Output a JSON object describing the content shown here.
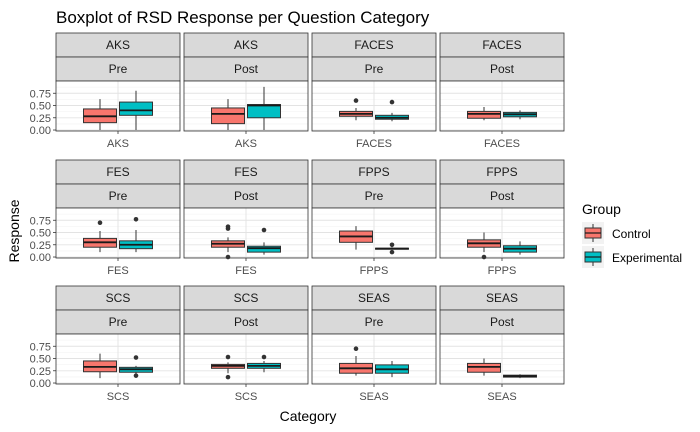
{
  "chart_data": {
    "type": "boxplot",
    "title": "Boxplot of RSD Response per Question Category",
    "xlabel": "Category",
    "ylabel": "Response",
    "ylim": [
      -0.02,
      1.0
    ],
    "yticks": [
      "0.00",
      "0.25",
      "0.50",
      "0.75"
    ],
    "grid": true,
    "facet_layout": "3 rows x 4 columns, faceted by category and time",
    "legend": {
      "title": "Group",
      "position": "right",
      "entries": [
        {
          "name": "Control",
          "color": "#F8766D"
        },
        {
          "name": "Experimental",
          "color": "#00BFC4"
        }
      ]
    },
    "panels": [
      {
        "category": "AKS",
        "time": "Pre",
        "x_label": "AKS",
        "boxes": [
          {
            "group": "Control",
            "whisker_low": 0.0,
            "q1": 0.15,
            "median": 0.28,
            "q3": 0.43,
            "whisker_high": 0.63,
            "outliers": []
          },
          {
            "group": "Experimental",
            "whisker_low": 0.0,
            "q1": 0.3,
            "median": 0.4,
            "q3": 0.57,
            "whisker_high": 0.8,
            "outliers": []
          }
        ]
      },
      {
        "category": "AKS",
        "time": "Post",
        "x_label": "AKS",
        "boxes": [
          {
            "group": "Control",
            "whisker_low": 0.0,
            "q1": 0.13,
            "median": 0.33,
            "q3": 0.45,
            "whisker_high": 0.63,
            "outliers": []
          },
          {
            "group": "Experimental",
            "whisker_low": 0.0,
            "q1": 0.25,
            "median": 0.5,
            "q3": 0.52,
            "whisker_high": 0.88,
            "outliers": []
          }
        ]
      },
      {
        "category": "FACES",
        "time": "Pre",
        "x_label": "FACES",
        "boxes": [
          {
            "group": "Control",
            "whisker_low": 0.2,
            "q1": 0.28,
            "median": 0.33,
            "q3": 0.38,
            "whisker_high": 0.45,
            "outliers": [
              0.6
            ]
          },
          {
            "group": "Experimental",
            "whisker_low": 0.18,
            "q1": 0.22,
            "median": 0.25,
            "q3": 0.3,
            "whisker_high": 0.35,
            "outliers": [
              0.57
            ]
          }
        ]
      },
      {
        "category": "FACES",
        "time": "Post",
        "x_label": "FACES",
        "boxes": [
          {
            "group": "Control",
            "whisker_low": 0.2,
            "q1": 0.24,
            "median": 0.33,
            "q3": 0.38,
            "whisker_high": 0.47,
            "outliers": []
          },
          {
            "group": "Experimental",
            "whisker_low": 0.22,
            "q1": 0.27,
            "median": 0.32,
            "q3": 0.36,
            "whisker_high": 0.4,
            "outliers": []
          }
        ]
      },
      {
        "category": "FES",
        "time": "Pre",
        "x_label": "FES",
        "boxes": [
          {
            "group": "Control",
            "whisker_low": 0.1,
            "q1": 0.2,
            "median": 0.3,
            "q3": 0.38,
            "whisker_high": 0.53,
            "outliers": [
              0.7
            ]
          },
          {
            "group": "Experimental",
            "whisker_low": 0.1,
            "q1": 0.17,
            "median": 0.25,
            "q3": 0.33,
            "whisker_high": 0.55,
            "outliers": [
              0.77
            ]
          }
        ]
      },
      {
        "category": "FES",
        "time": "Post",
        "x_label": "FES",
        "boxes": [
          {
            "group": "Control",
            "whisker_low": 0.1,
            "q1": 0.2,
            "median": 0.27,
            "q3": 0.33,
            "whisker_high": 0.4,
            "outliers": [
              0.62,
              0.58,
              0.0
            ]
          },
          {
            "group": "Experimental",
            "whisker_low": 0.05,
            "q1": 0.1,
            "median": 0.18,
            "q3": 0.22,
            "whisker_high": 0.3,
            "outliers": [
              0.55
            ]
          }
        ]
      },
      {
        "category": "FPPS",
        "time": "Pre",
        "x_label": "FPPS",
        "boxes": [
          {
            "group": "Control",
            "whisker_low": 0.15,
            "q1": 0.3,
            "median": 0.42,
            "q3": 0.53,
            "whisker_high": 0.63,
            "outliers": []
          },
          {
            "group": "Experimental",
            "whisker_low": 0.15,
            "q1": 0.16,
            "median": 0.17,
            "q3": 0.18,
            "whisker_high": 0.2,
            "outliers": [
              0.25,
              0.1
            ]
          }
        ]
      },
      {
        "category": "FPPS",
        "time": "Post",
        "x_label": "FPPS",
        "boxes": [
          {
            "group": "Control",
            "whisker_low": 0.1,
            "q1": 0.2,
            "median": 0.28,
            "q3": 0.35,
            "whisker_high": 0.5,
            "outliers": [
              0.0
            ]
          },
          {
            "group": "Experimental",
            "whisker_low": 0.05,
            "q1": 0.1,
            "median": 0.17,
            "q3": 0.23,
            "whisker_high": 0.32,
            "outliers": []
          }
        ]
      },
      {
        "category": "SCS",
        "time": "Pre",
        "x_label": "SCS",
        "boxes": [
          {
            "group": "Control",
            "whisker_low": 0.1,
            "q1": 0.23,
            "median": 0.33,
            "q3": 0.45,
            "whisker_high": 0.6,
            "outliers": []
          },
          {
            "group": "Experimental",
            "whisker_low": 0.18,
            "q1": 0.22,
            "median": 0.28,
            "q3": 0.32,
            "whisker_high": 0.35,
            "outliers": [
              0.52,
              0.15
            ]
          }
        ]
      },
      {
        "category": "SCS",
        "time": "Post",
        "x_label": "SCS",
        "boxes": [
          {
            "group": "Control",
            "whisker_low": 0.2,
            "q1": 0.3,
            "median": 0.35,
            "q3": 0.38,
            "whisker_high": 0.42,
            "outliers": [
              0.53,
              0.12
            ]
          },
          {
            "group": "Experimental",
            "whisker_low": 0.22,
            "q1": 0.3,
            "median": 0.35,
            "q3": 0.4,
            "whisker_high": 0.45,
            "outliers": [
              0.53
            ]
          }
        ]
      },
      {
        "category": "SEAS",
        "time": "Pre",
        "x_label": "SEAS",
        "boxes": [
          {
            "group": "Control",
            "whisker_low": 0.15,
            "q1": 0.2,
            "median": 0.3,
            "q3": 0.4,
            "whisker_high": 0.55,
            "outliers": [
              0.7
            ]
          },
          {
            "group": "Experimental",
            "whisker_low": 0.12,
            "q1": 0.2,
            "median": 0.28,
            "q3": 0.37,
            "whisker_high": 0.45,
            "outliers": []
          }
        ]
      },
      {
        "category": "SEAS",
        "time": "Post",
        "x_label": "SEAS",
        "boxes": [
          {
            "group": "Control",
            "whisker_low": 0.15,
            "q1": 0.22,
            "median": 0.33,
            "q3": 0.4,
            "whisker_high": 0.5,
            "outliers": []
          },
          {
            "group": "Experimental",
            "whisker_low": 0.1,
            "q1": 0.12,
            "median": 0.14,
            "q3": 0.16,
            "whisker_high": 0.18,
            "outliers": []
          }
        ]
      }
    ]
  }
}
